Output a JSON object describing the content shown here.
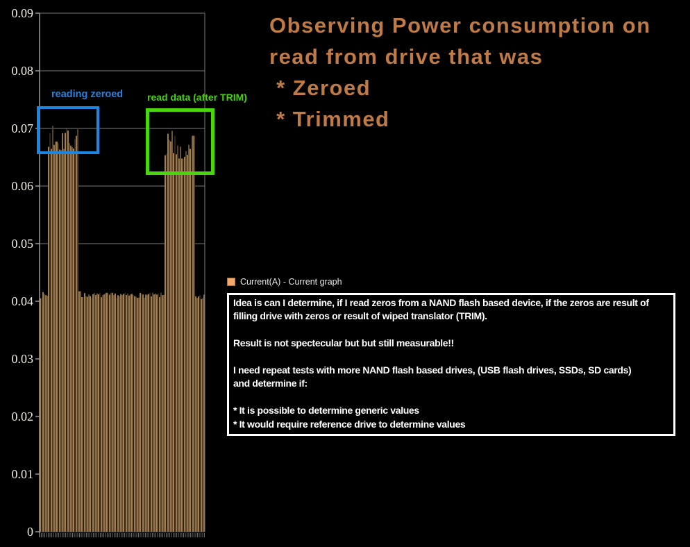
{
  "title": {
    "color": "#bf7a45",
    "lines": [
      "Observing Power consumption on",
      "read from drive that was",
      " * Zeroed",
      " * Trimmed"
    ]
  },
  "annotations": {
    "zeroed": {
      "label": "reading zeroed",
      "color": "#1a86e2"
    },
    "trimmed": {
      "label": "read data (after TRIM)",
      "color": "#4ad60c"
    }
  },
  "legend": {
    "label": "Current(A) - Current graph",
    "swatch_color": "#f4a96a"
  },
  "notes": {
    "lines": [
      "Idea is can I determine, if I read zeros from a NAND flash based device, if the zeros are result of",
      "filling drive with zeros or result of wiped translator (TRIM).",
      "",
      "Result is not spectecular but but still measurable!!",
      "",
      "I need repeat tests with more NAND flash based drives, (USB flash drives, SSDs, SD cards)",
      "and determine if:",
      "",
      "* It is possible to determine generic values",
      "* It would require reference drive to determine values"
    ]
  },
  "chart_data": {
    "type": "bar",
    "title": "",
    "xlabel": "",
    "ylabel": "",
    "series_name": "Current(A)",
    "ylim": [
      0,
      0.09
    ],
    "yticks": [
      0,
      0.01,
      0.02,
      0.03,
      0.04,
      0.05,
      0.06,
      0.07,
      0.08,
      0.09
    ],
    "ytick_labels": [
      "0",
      "0.01",
      "0.02",
      "0.03",
      "0.04",
      "0.05",
      "0.06",
      "0.07",
      "0.08",
      "0.09"
    ],
    "grid": true,
    "legend_position": "floating-right",
    "n_bars": 119,
    "baseline_value": 0.041,
    "burst1_peak": 0.0715,
    "burst2_peak": 0.0697,
    "segments": [
      {
        "t0": 0.0,
        "t1": 0.046,
        "min": 0.0405,
        "max": 0.0416
      },
      {
        "t0": 0.046,
        "t1": 0.231,
        "min": 0.066,
        "max": 0.0718,
        "spiky": true
      },
      {
        "t0": 0.231,
        "t1": 0.252,
        "min": 0.0414,
        "max": 0.0424
      },
      {
        "t0": 0.252,
        "t1": 0.7605,
        "min": 0.0406,
        "max": 0.0415
      },
      {
        "t0": 0.7605,
        "t1": 0.9454,
        "min": 0.0645,
        "max": 0.0698,
        "spiky": true
      },
      {
        "t0": 0.9454,
        "t1": 1.001,
        "min": 0.0403,
        "max": 0.0413
      }
    ],
    "grid_color": "#7d7d7d",
    "axis_color": "#9a9a9a",
    "tick_color": "#6a6a6a",
    "tick_label_color": "#f2ede2",
    "bar_colors_light": [
      "#a5804f",
      "#93714a",
      "#9c7a4e"
    ],
    "bar_colors_dark": [
      "#53412a",
      "#2f2316",
      "#6b5334"
    ]
  }
}
